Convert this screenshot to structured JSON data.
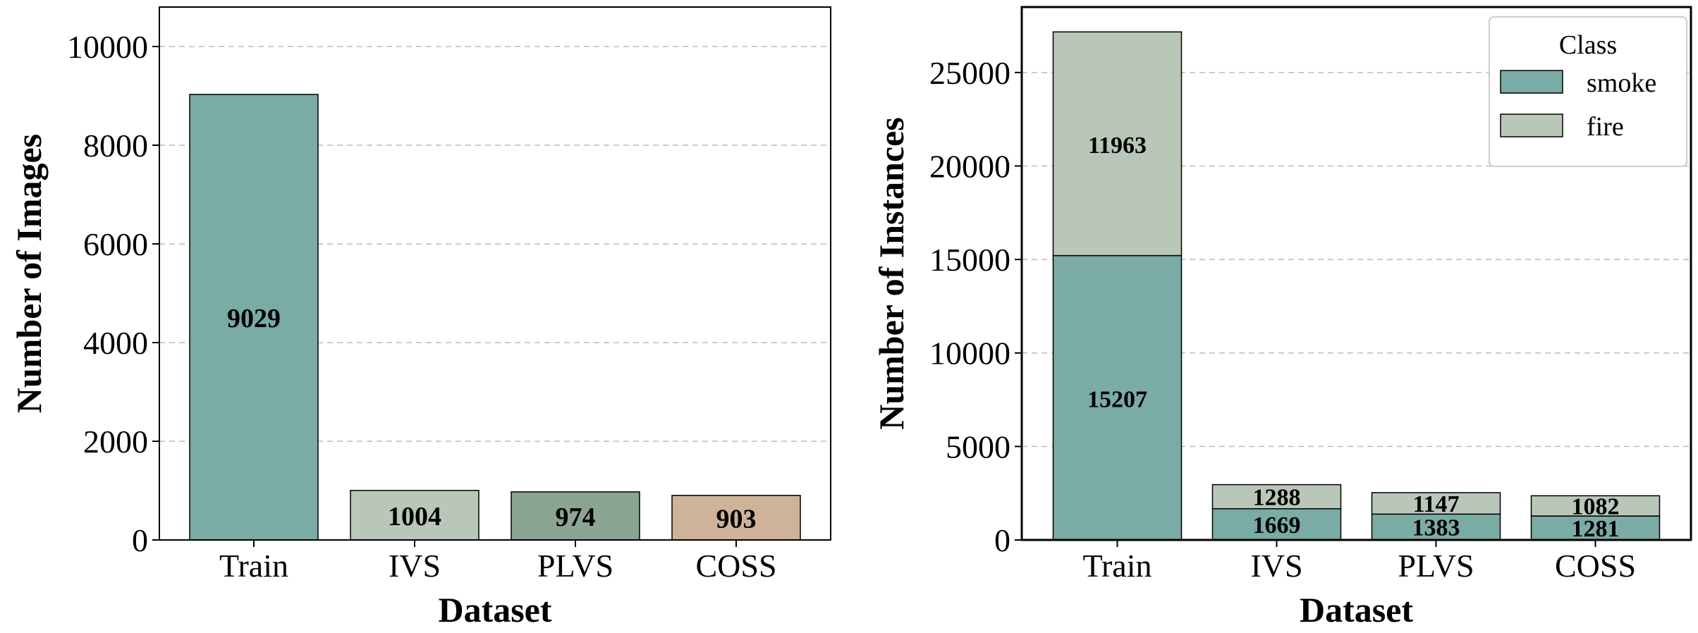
{
  "chart_data": [
    {
      "type": "bar",
      "categories": [
        "Train",
        "IVS",
        "PLVS",
        "COSS"
      ],
      "values": [
        9029,
        1004,
        974,
        903
      ],
      "colors": [
        "#7aaba4",
        "#b8c7b8",
        "#8aa592",
        "#cfb398"
      ],
      "xlabel": "Dataset",
      "ylabel": "Number of Images",
      "ylim": [
        0,
        10800
      ],
      "yticks": [
        0,
        2000,
        4000,
        6000,
        8000,
        10000
      ],
      "grid": true
    },
    {
      "type": "bar",
      "stacked": true,
      "categories": [
        "Train",
        "IVS",
        "PLVS",
        "COSS"
      ],
      "series": [
        {
          "name": "smoke",
          "values": [
            15207,
            1669,
            1383,
            1281
          ],
          "color": "#7aaba4"
        },
        {
          "name": "fire",
          "values": [
            11963,
            1288,
            1147,
            1082
          ],
          "color": "#b8c7b8"
        }
      ],
      "xlabel": "Dataset",
      "ylabel": "Number of Instances",
      "ylim": [
        0,
        28500
      ],
      "yticks": [
        0,
        5000,
        10000,
        15000,
        20000,
        25000
      ],
      "legend": {
        "title": "Class",
        "position": "top-right"
      },
      "grid": true
    }
  ]
}
